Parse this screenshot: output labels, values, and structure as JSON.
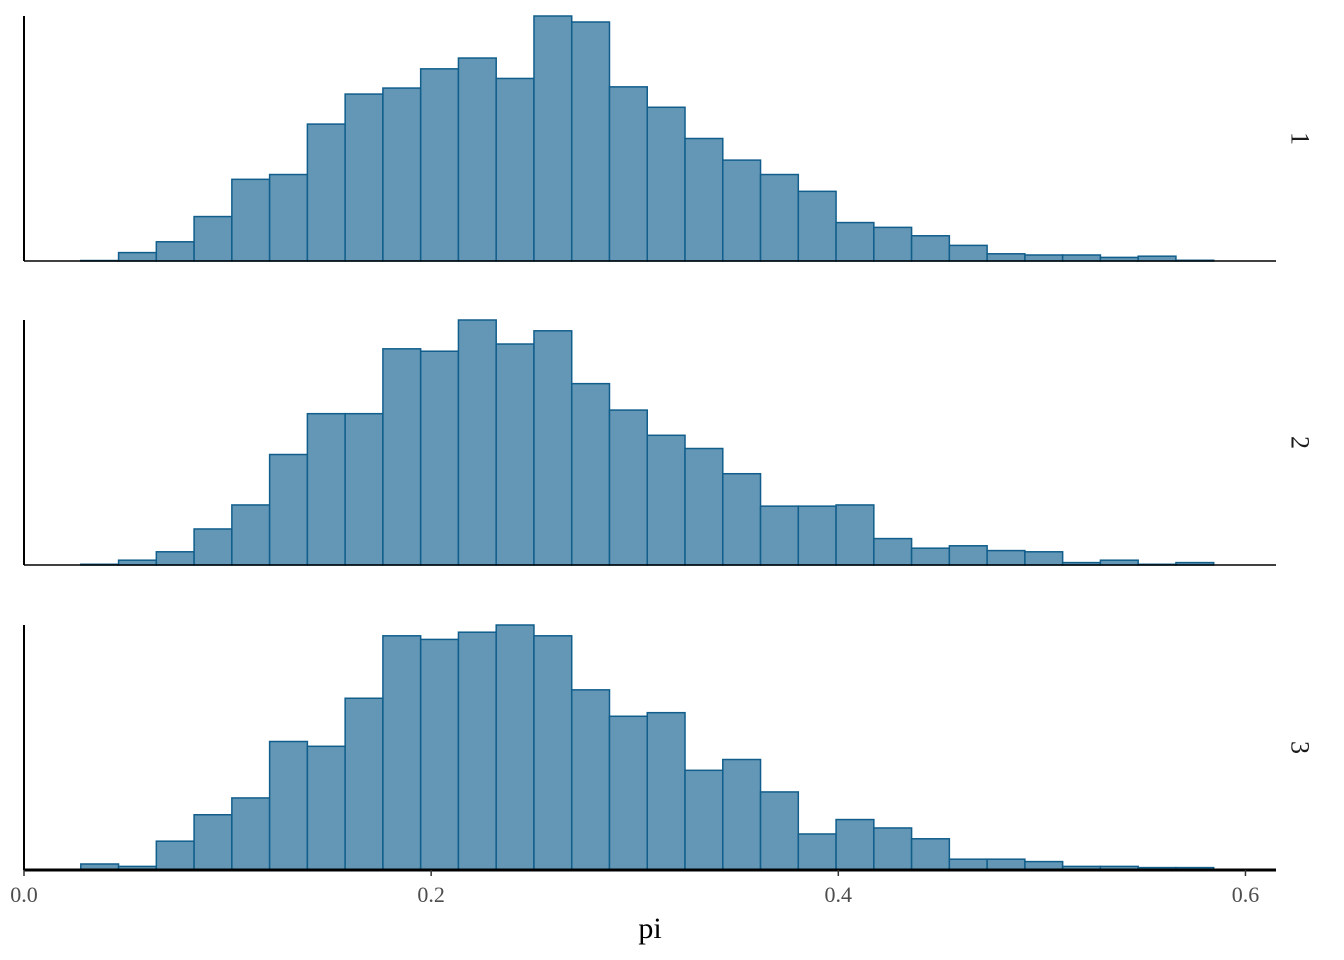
{
  "chart_data": {
    "type": "bar",
    "subtype": "histogram-facets",
    "xlabel": "pi",
    "xlim": [
      0,
      0.615
    ],
    "x_ticks": [
      "0.0",
      "0.2",
      "0.4",
      "0.6"
    ],
    "x_tick_values": [
      0,
      0.2,
      0.4,
      0.6
    ],
    "bin_start": 0.0279,
    "bin_width": 0.01855,
    "bar_fill": "#6397b5",
    "bar_stroke": "#115e8c",
    "facet_label_side": "right",
    "ymax": 102,
    "facets": [
      {
        "label": "1",
        "counts": [
          0.2,
          3.5,
          8,
          18.5,
          34,
          36,
          57,
          69.5,
          72,
          80,
          84.5,
          76,
          102,
          99.5,
          72.5,
          64,
          51,
          42,
          36,
          29,
          16,
          14,
          10.5,
          6.5,
          3,
          2.5,
          2.5,
          1.5,
          2,
          0.3
        ]
      },
      {
        "label": "2",
        "counts": [
          0.3,
          2,
          5.5,
          15,
          25,
          46,
          63,
          63,
          90,
          89,
          102,
          92,
          97.5,
          75.5,
          64.5,
          54,
          48.5,
          38,
          24.5,
          24.5,
          25,
          11,
          7,
          8,
          6,
          5.5,
          1,
          2,
          0.3,
          1
        ]
      },
      {
        "label": "3",
        "counts": [
          2.5,
          1.5,
          12,
          23,
          30,
          53.5,
          51.5,
          71.5,
          97.5,
          96,
          99,
          102,
          97.5,
          75,
          64,
          65.5,
          41.5,
          46,
          32.5,
          15,
          21,
          17.5,
          13,
          4.5,
          4.5,
          3.5,
          1.5,
          1.5,
          1,
          1
        ]
      }
    ]
  }
}
